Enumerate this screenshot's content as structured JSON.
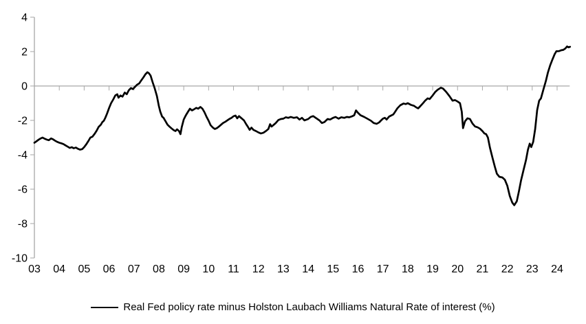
{
  "chart_data": {
    "type": "line",
    "title": "",
    "xlabel": "",
    "ylabel": "",
    "ylim": [
      -10,
      4
    ],
    "xlim": [
      2003,
      2024.6
    ],
    "grid": false,
    "zero_line": true,
    "legend_position": "bottom",
    "axis_color": "#a6a6a6",
    "text_color": "#000000",
    "y_tick_values": [
      4,
      2,
      0,
      -2,
      -4,
      -6,
      -8,
      -10
    ],
    "y_tick_labels": [
      "4",
      "2",
      "0",
      "-2",
      "-4",
      "-6",
      "-8",
      "-10"
    ],
    "x_tick_values": [
      2003,
      2004,
      2005,
      2006,
      2007,
      2008,
      2009,
      2010,
      2011,
      2012,
      2013,
      2014,
      2015,
      2016,
      2017,
      2018,
      2019,
      2020,
      2021,
      2022,
      2023,
      2024
    ],
    "x_tick_labels": [
      "03",
      "04",
      "05",
      "06",
      "07",
      "08",
      "09",
      "10",
      "11",
      "12",
      "13",
      "14",
      "15",
      "16",
      "17",
      "18",
      "19",
      "20",
      "21",
      "22",
      "23",
      "24"
    ],
    "series": [
      {
        "name": "Real Fed policy rate minus Holston Laubach Williams Natural Rate of interest (%)",
        "color": "#000000",
        "line_width": 2.7,
        "points": [
          [
            2003.0,
            -3.3
          ],
          [
            2003.08,
            -3.22
          ],
          [
            2003.17,
            -3.12
          ],
          [
            2003.25,
            -3.05
          ],
          [
            2003.33,
            -3.0
          ],
          [
            2003.42,
            -3.07
          ],
          [
            2003.5,
            -3.12
          ],
          [
            2003.58,
            -3.15
          ],
          [
            2003.67,
            -3.05
          ],
          [
            2003.75,
            -3.1
          ],
          [
            2003.83,
            -3.18
          ],
          [
            2003.92,
            -3.25
          ],
          [
            2004.0,
            -3.3
          ],
          [
            2004.08,
            -3.33
          ],
          [
            2004.17,
            -3.38
          ],
          [
            2004.25,
            -3.45
          ],
          [
            2004.33,
            -3.52
          ],
          [
            2004.42,
            -3.6
          ],
          [
            2004.5,
            -3.56
          ],
          [
            2004.58,
            -3.62
          ],
          [
            2004.67,
            -3.58
          ],
          [
            2004.75,
            -3.65
          ],
          [
            2004.83,
            -3.7
          ],
          [
            2004.92,
            -3.67
          ],
          [
            2005.0,
            -3.55
          ],
          [
            2005.08,
            -3.4
          ],
          [
            2005.17,
            -3.2
          ],
          [
            2005.25,
            -3.0
          ],
          [
            2005.33,
            -2.95
          ],
          [
            2005.42,
            -2.78
          ],
          [
            2005.5,
            -2.6
          ],
          [
            2005.58,
            -2.38
          ],
          [
            2005.67,
            -2.25
          ],
          [
            2005.73,
            -2.1
          ],
          [
            2005.79,
            -2.02
          ],
          [
            2005.85,
            -1.85
          ],
          [
            2005.92,
            -1.6
          ],
          [
            2006.0,
            -1.28
          ],
          [
            2006.08,
            -1.0
          ],
          [
            2006.17,
            -0.78
          ],
          [
            2006.25,
            -0.55
          ],
          [
            2006.33,
            -0.48
          ],
          [
            2006.38,
            -0.68
          ],
          [
            2006.46,
            -0.55
          ],
          [
            2006.54,
            -0.62
          ],
          [
            2006.63,
            -0.38
          ],
          [
            2006.71,
            -0.48
          ],
          [
            2006.79,
            -0.25
          ],
          [
            2006.88,
            -0.12
          ],
          [
            2006.96,
            -0.18
          ],
          [
            2007.04,
            -0.05
          ],
          [
            2007.13,
            0.08
          ],
          [
            2007.21,
            0.15
          ],
          [
            2007.29,
            0.32
          ],
          [
            2007.38,
            0.5
          ],
          [
            2007.46,
            0.68
          ],
          [
            2007.54,
            0.8
          ],
          [
            2007.6,
            0.74
          ],
          [
            2007.67,
            0.6
          ],
          [
            2007.75,
            0.22
          ],
          [
            2007.83,
            -0.12
          ],
          [
            2007.92,
            -0.58
          ],
          [
            2008.0,
            -1.15
          ],
          [
            2008.06,
            -1.5
          ],
          [
            2008.13,
            -1.78
          ],
          [
            2008.19,
            -1.85
          ],
          [
            2008.27,
            -2.05
          ],
          [
            2008.35,
            -2.25
          ],
          [
            2008.44,
            -2.38
          ],
          [
            2008.52,
            -2.48
          ],
          [
            2008.6,
            -2.57
          ],
          [
            2008.67,
            -2.62
          ],
          [
            2008.73,
            -2.52
          ],
          [
            2008.81,
            -2.62
          ],
          [
            2008.87,
            -2.8
          ],
          [
            2008.92,
            -2.4
          ],
          [
            2009.0,
            -1.95
          ],
          [
            2009.08,
            -1.72
          ],
          [
            2009.17,
            -1.5
          ],
          [
            2009.25,
            -1.32
          ],
          [
            2009.33,
            -1.42
          ],
          [
            2009.42,
            -1.35
          ],
          [
            2009.5,
            -1.27
          ],
          [
            2009.58,
            -1.32
          ],
          [
            2009.67,
            -1.22
          ],
          [
            2009.75,
            -1.32
          ],
          [
            2009.83,
            -1.52
          ],
          [
            2009.92,
            -1.8
          ],
          [
            2010.0,
            -2.02
          ],
          [
            2010.08,
            -2.28
          ],
          [
            2010.17,
            -2.42
          ],
          [
            2010.25,
            -2.5
          ],
          [
            2010.33,
            -2.45
          ],
          [
            2010.42,
            -2.35
          ],
          [
            2010.5,
            -2.25
          ],
          [
            2010.58,
            -2.15
          ],
          [
            2010.67,
            -2.08
          ],
          [
            2010.75,
            -2.0
          ],
          [
            2010.83,
            -1.92
          ],
          [
            2010.92,
            -1.85
          ],
          [
            2011.0,
            -1.76
          ],
          [
            2011.08,
            -1.72
          ],
          [
            2011.15,
            -1.88
          ],
          [
            2011.22,
            -1.75
          ],
          [
            2011.3,
            -1.85
          ],
          [
            2011.42,
            -2.0
          ],
          [
            2011.5,
            -2.2
          ],
          [
            2011.58,
            -2.38
          ],
          [
            2011.65,
            -2.55
          ],
          [
            2011.72,
            -2.42
          ],
          [
            2011.8,
            -2.55
          ],
          [
            2011.9,
            -2.62
          ],
          [
            2012.0,
            -2.7
          ],
          [
            2012.1,
            -2.76
          ],
          [
            2012.2,
            -2.72
          ],
          [
            2012.3,
            -2.62
          ],
          [
            2012.4,
            -2.5
          ],
          [
            2012.47,
            -2.22
          ],
          [
            2012.53,
            -2.36
          ],
          [
            2012.62,
            -2.25
          ],
          [
            2012.7,
            -2.15
          ],
          [
            2012.8,
            -1.98
          ],
          [
            2012.9,
            -1.92
          ],
          [
            2013.0,
            -1.9
          ],
          [
            2013.1,
            -1.82
          ],
          [
            2013.2,
            -1.85
          ],
          [
            2013.3,
            -1.8
          ],
          [
            2013.42,
            -1.85
          ],
          [
            2013.55,
            -1.82
          ],
          [
            2013.65,
            -1.95
          ],
          [
            2013.75,
            -1.85
          ],
          [
            2013.85,
            -2.0
          ],
          [
            2014.0,
            -1.92
          ],
          [
            2014.1,
            -1.8
          ],
          [
            2014.2,
            -1.75
          ],
          [
            2014.33,
            -1.88
          ],
          [
            2014.45,
            -2.0
          ],
          [
            2014.55,
            -2.15
          ],
          [
            2014.65,
            -2.1
          ],
          [
            2014.78,
            -1.92
          ],
          [
            2014.88,
            -1.95
          ],
          [
            2015.0,
            -1.85
          ],
          [
            2015.1,
            -1.8
          ],
          [
            2015.22,
            -1.9
          ],
          [
            2015.33,
            -1.82
          ],
          [
            2015.45,
            -1.85
          ],
          [
            2015.55,
            -1.8
          ],
          [
            2015.65,
            -1.82
          ],
          [
            2015.77,
            -1.76
          ],
          [
            2015.85,
            -1.7
          ],
          [
            2015.92,
            -1.42
          ],
          [
            2016.0,
            -1.56
          ],
          [
            2016.1,
            -1.7
          ],
          [
            2016.25,
            -1.8
          ],
          [
            2016.4,
            -1.92
          ],
          [
            2016.52,
            -2.02
          ],
          [
            2016.63,
            -2.15
          ],
          [
            2016.75,
            -2.2
          ],
          [
            2016.85,
            -2.12
          ],
          [
            2016.93,
            -2.0
          ],
          [
            2017.0,
            -1.9
          ],
          [
            2017.08,
            -1.85
          ],
          [
            2017.15,
            -1.95
          ],
          [
            2017.25,
            -1.78
          ],
          [
            2017.33,
            -1.72
          ],
          [
            2017.42,
            -1.65
          ],
          [
            2017.5,
            -1.48
          ],
          [
            2017.58,
            -1.3
          ],
          [
            2017.7,
            -1.12
          ],
          [
            2017.83,
            -1.02
          ],
          [
            2017.92,
            -1.05
          ],
          [
            2018.0,
            -1.0
          ],
          [
            2018.13,
            -1.1
          ],
          [
            2018.25,
            -1.15
          ],
          [
            2018.35,
            -1.25
          ],
          [
            2018.42,
            -1.3
          ],
          [
            2018.5,
            -1.18
          ],
          [
            2018.6,
            -1.02
          ],
          [
            2018.7,
            -0.85
          ],
          [
            2018.8,
            -0.72
          ],
          [
            2018.88,
            -0.76
          ],
          [
            2019.0,
            -0.55
          ],
          [
            2019.1,
            -0.35
          ],
          [
            2019.2,
            -0.22
          ],
          [
            2019.33,
            -0.1
          ],
          [
            2019.42,
            -0.15
          ],
          [
            2019.55,
            -0.35
          ],
          [
            2019.67,
            -0.58
          ],
          [
            2019.8,
            -0.85
          ],
          [
            2019.9,
            -0.82
          ],
          [
            2020.0,
            -0.9
          ],
          [
            2020.1,
            -1.0
          ],
          [
            2020.17,
            -1.5
          ],
          [
            2020.22,
            -2.45
          ],
          [
            2020.3,
            -2.05
          ],
          [
            2020.4,
            -1.88
          ],
          [
            2020.5,
            -1.92
          ],
          [
            2020.6,
            -2.18
          ],
          [
            2020.7,
            -2.35
          ],
          [
            2020.8,
            -2.4
          ],
          [
            2020.9,
            -2.48
          ],
          [
            2021.0,
            -2.62
          ],
          [
            2021.08,
            -2.76
          ],
          [
            2021.15,
            -2.8
          ],
          [
            2021.22,
            -3.0
          ],
          [
            2021.3,
            -3.58
          ],
          [
            2021.4,
            -4.15
          ],
          [
            2021.5,
            -4.7
          ],
          [
            2021.58,
            -5.1
          ],
          [
            2021.68,
            -5.28
          ],
          [
            2021.8,
            -5.32
          ],
          [
            2021.9,
            -5.45
          ],
          [
            2022.0,
            -5.8
          ],
          [
            2022.1,
            -6.4
          ],
          [
            2022.2,
            -6.78
          ],
          [
            2022.28,
            -6.93
          ],
          [
            2022.38,
            -6.7
          ],
          [
            2022.47,
            -6.1
          ],
          [
            2022.55,
            -5.5
          ],
          [
            2022.65,
            -4.9
          ],
          [
            2022.75,
            -4.3
          ],
          [
            2022.83,
            -3.7
          ],
          [
            2022.9,
            -3.35
          ],
          [
            2022.96,
            -3.55
          ],
          [
            2023.04,
            -3.25
          ],
          [
            2023.12,
            -2.5
          ],
          [
            2023.2,
            -1.4
          ],
          [
            2023.28,
            -0.85
          ],
          [
            2023.35,
            -0.72
          ],
          [
            2023.45,
            -0.2
          ],
          [
            2023.55,
            0.3
          ],
          [
            2023.63,
            0.78
          ],
          [
            2023.72,
            1.2
          ],
          [
            2023.8,
            1.5
          ],
          [
            2023.9,
            1.85
          ],
          [
            2023.97,
            2.02
          ],
          [
            2024.08,
            2.03
          ],
          [
            2024.17,
            2.08
          ],
          [
            2024.25,
            2.1
          ],
          [
            2024.33,
            2.18
          ],
          [
            2024.4,
            2.3
          ],
          [
            2024.46,
            2.25
          ],
          [
            2024.52,
            2.28
          ]
        ]
      }
    ]
  },
  "legend": {
    "items": [
      {
        "label": "Real Fed policy rate minus Holston Laubach Williams Natural Rate of interest (%)",
        "swatch_color": "#000000"
      }
    ]
  }
}
